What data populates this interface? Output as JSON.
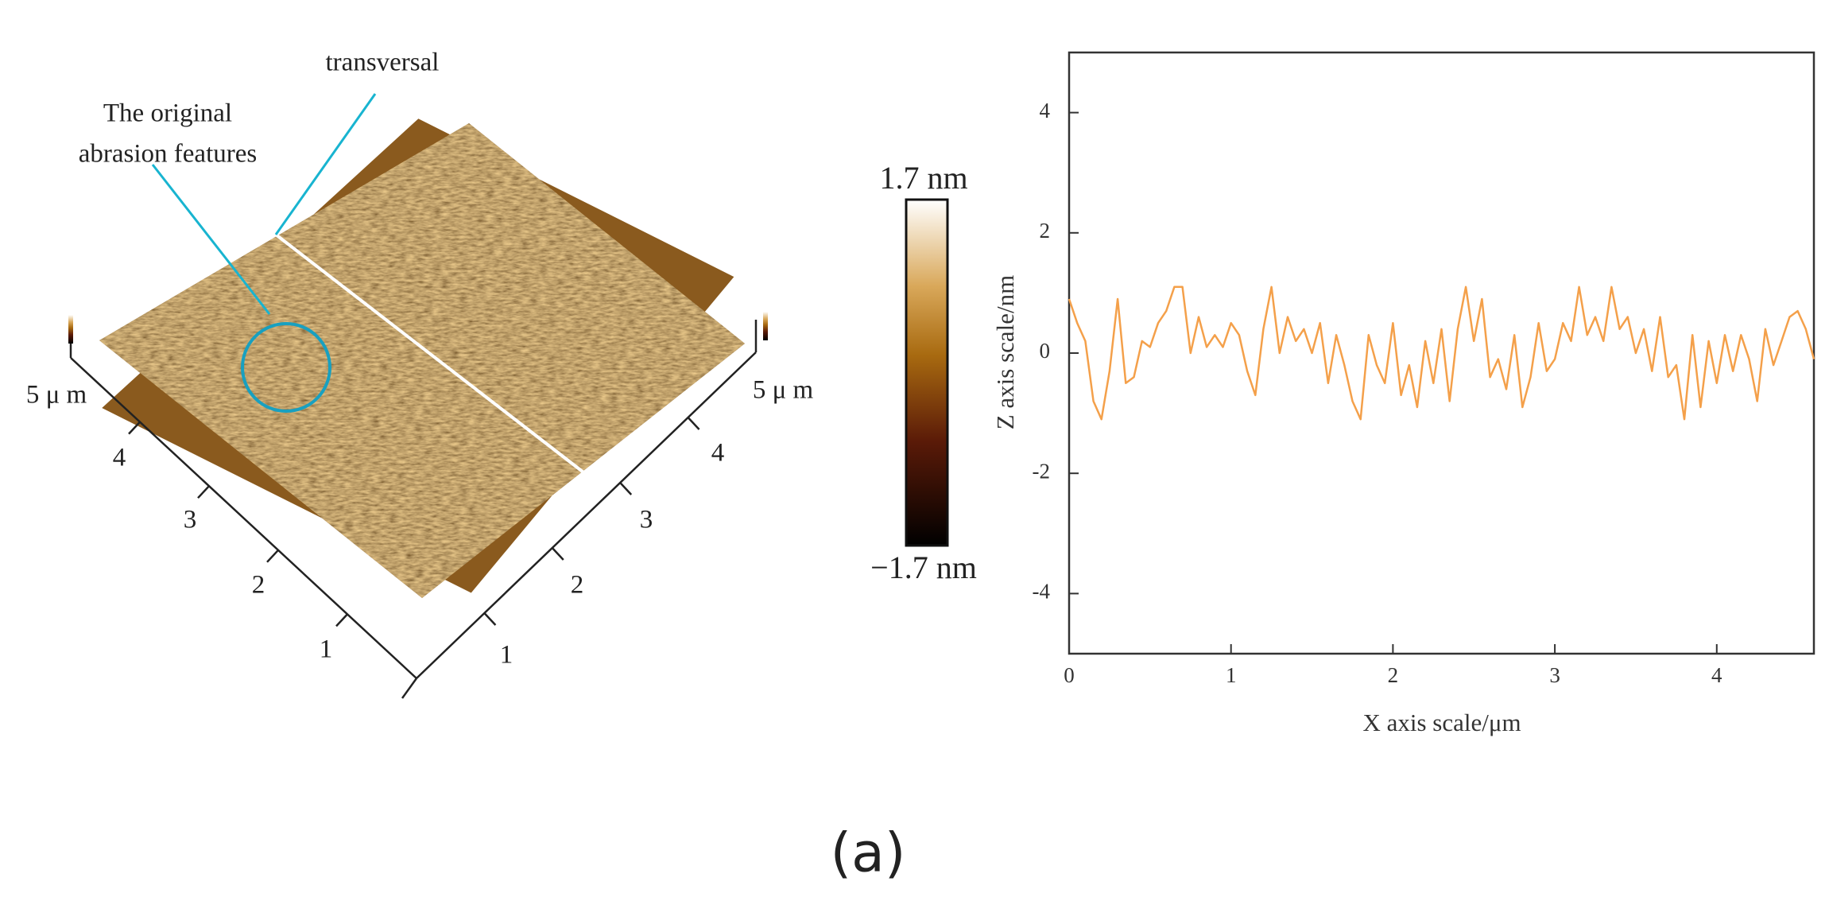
{
  "afm_panel": {
    "annotations": {
      "transversal": "transversal",
      "feature_line1": "The original",
      "feature_line2": "abrasion features"
    },
    "left_axis_ticks": [
      "1",
      "2",
      "3",
      "4",
      "5 μ m"
    ],
    "right_axis_ticks": [
      "1",
      "2",
      "3",
      "4",
      "5 μ m"
    ],
    "colorbar": {
      "max": "1.7 nm",
      "min": "−1.7 nm"
    }
  },
  "chart_data": {
    "type": "line",
    "xlabel": "X axis scale/μm",
    "ylabel": "Z axis scale/nm",
    "x": [
      0,
      0.05,
      0.1,
      0.15,
      0.2,
      0.25,
      0.3,
      0.35,
      0.4,
      0.45,
      0.5,
      0.55,
      0.6,
      0.65,
      0.7,
      0.75,
      0.8,
      0.85,
      0.9,
      0.95,
      1.0,
      1.05,
      1.1,
      1.15,
      1.2,
      1.25,
      1.3,
      1.35,
      1.4,
      1.45,
      1.5,
      1.55,
      1.6,
      1.65,
      1.7,
      1.75,
      1.8,
      1.85,
      1.9,
      1.95,
      2.0,
      2.05,
      2.1,
      2.15,
      2.2,
      2.25,
      2.3,
      2.35,
      2.4,
      2.45,
      2.5,
      2.55,
      2.6,
      2.65,
      2.7,
      2.75,
      2.8,
      2.85,
      2.9,
      2.95,
      3.0,
      3.05,
      3.1,
      3.15,
      3.2,
      3.25,
      3.3,
      3.35,
      3.4,
      3.45,
      3.5,
      3.55,
      3.6,
      3.65,
      3.7,
      3.75,
      3.8,
      3.85,
      3.9,
      3.95,
      4.0,
      4.05,
      4.1,
      4.15,
      4.2,
      4.25,
      4.3,
      4.35,
      4.4,
      4.45,
      4.5,
      4.55,
      4.6
    ],
    "series": [
      {
        "color": "#f4a04a",
        "values": [
          0.9,
          0.5,
          0.2,
          -0.8,
          -1.1,
          -0.3,
          0.9,
          -0.5,
          -0.4,
          0.2,
          0.1,
          0.5,
          0.7,
          1.1,
          1.1,
          0.0,
          0.6,
          0.1,
          0.3,
          0.1,
          0.5,
          0.3,
          -0.3,
          -0.7,
          0.4,
          1.1,
          0.0,
          0.6,
          0.2,
          0.4,
          0.0,
          0.5,
          -0.5,
          0.3,
          -0.2,
          -0.8,
          -1.1,
          0.3,
          -0.2,
          -0.5,
          0.5,
          -0.7,
          -0.2,
          -0.9,
          0.2,
          -0.5,
          0.4,
          -0.8,
          0.4,
          1.1,
          0.2,
          0.9,
          -0.4,
          -0.1,
          -0.6,
          0.3,
          -0.9,
          -0.4,
          0.5,
          -0.3,
          -0.1,
          0.5,
          0.2,
          1.1,
          0.3,
          0.6,
          0.2,
          1.1,
          0.4,
          0.6,
          0.0,
          0.4,
          -0.3,
          0.6,
          -0.4,
          -0.2,
          -1.1,
          0.3,
          -0.9,
          0.2,
          -0.5,
          0.3,
          -0.3,
          0.3,
          -0.1,
          -0.8,
          0.4,
          -0.2,
          0.2,
          0.6,
          0.7,
          0.4,
          -0.1
        ]
      }
    ],
    "xlim": [
      0,
      4.6
    ],
    "ylim": [
      -5,
      5
    ],
    "xticks": [
      0,
      1,
      2,
      3,
      4
    ],
    "yticks": [
      -4,
      -2,
      0,
      2,
      4
    ]
  },
  "caption": "(a)"
}
